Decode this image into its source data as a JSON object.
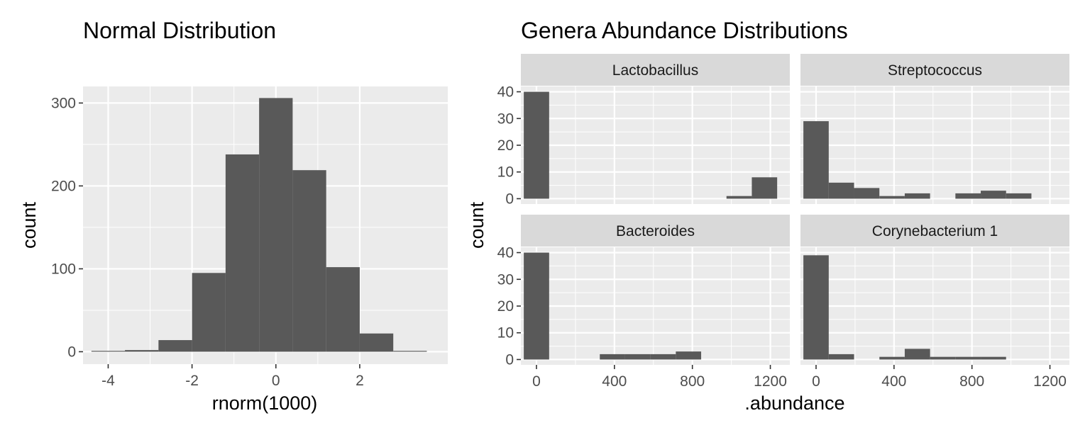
{
  "chart_data": [
    {
      "type": "bar",
      "title": "Normal Distribution",
      "xlabel": "rnorm(1000)",
      "ylabel": "count",
      "xlim": [
        -4.6,
        4.1
      ],
      "ylim": [
        -15,
        320
      ],
      "xticks": [
        -4,
        -2,
        0,
        2
      ],
      "xtick_labels": [
        "-4",
        "-2",
        "0",
        "2"
      ],
      "yticks": [
        0,
        100,
        200,
        300
      ],
      "ytick_labels": [
        "0",
        "100",
        "200",
        "300"
      ],
      "bin_width": 0.8,
      "bins": [
        {
          "x0": -4.4,
          "x1": -3.6,
          "count": 1
        },
        {
          "x0": -3.6,
          "x1": -2.8,
          "count": 2
        },
        {
          "x0": -2.8,
          "x1": -2.0,
          "count": 14
        },
        {
          "x0": -2.0,
          "x1": -1.2,
          "count": 95
        },
        {
          "x0": -1.2,
          "x1": -0.4,
          "count": 238
        },
        {
          "x0": -0.4,
          "x1": 0.4,
          "count": 306
        },
        {
          "x0": 0.4,
          "x1": 1.2,
          "count": 219
        },
        {
          "x0": 1.2,
          "x1": 2.0,
          "count": 102
        },
        {
          "x0": 2.0,
          "x1": 2.8,
          "count": 22
        },
        {
          "x0": 2.8,
          "x1": 3.6,
          "count": 1
        }
      ],
      "grid": true
    },
    {
      "type": "bar",
      "title": "Genera Abundance Distributions",
      "xlabel": ".abundance",
      "ylabel": "count",
      "xlim": [
        -80,
        1300
      ],
      "ylim": [
        -2,
        42
      ],
      "xticks": [
        0,
        400,
        800,
        1200
      ],
      "xtick_labels": [
        "0",
        "400",
        "800",
        "1200"
      ],
      "yticks": [
        0,
        10,
        20,
        30,
        40
      ],
      "ytick_labels": [
        "0",
        "10",
        "20",
        "30",
        "40"
      ],
      "bin_width": 130,
      "grid": true,
      "facets": [
        {
          "name": "Lactobacillus",
          "bins": [
            {
              "x0": -65,
              "x1": 65,
              "count": 40
            },
            {
              "x0": 975,
              "x1": 1105,
              "count": 1
            },
            {
              "x0": 1105,
              "x1": 1235,
              "count": 8
            }
          ]
        },
        {
          "name": "Streptococcus",
          "bins": [
            {
              "x0": -65,
              "x1": 65,
              "count": 29
            },
            {
              "x0": 65,
              "x1": 195,
              "count": 6
            },
            {
              "x0": 195,
              "x1": 325,
              "count": 4
            },
            {
              "x0": 325,
              "x1": 455,
              "count": 1
            },
            {
              "x0": 455,
              "x1": 585,
              "count": 2
            },
            {
              "x0": 715,
              "x1": 845,
              "count": 2
            },
            {
              "x0": 845,
              "x1": 975,
              "count": 3
            },
            {
              "x0": 975,
              "x1": 1105,
              "count": 2
            }
          ]
        },
        {
          "name": "Bacteroides",
          "bins": [
            {
              "x0": -65,
              "x1": 65,
              "count": 40
            },
            {
              "x0": 325,
              "x1": 455,
              "count": 2
            },
            {
              "x0": 455,
              "x1": 585,
              "count": 2
            },
            {
              "x0": 585,
              "x1": 715,
              "count": 2
            },
            {
              "x0": 715,
              "x1": 845,
              "count": 3
            }
          ]
        },
        {
          "name": "Corynebacterium 1",
          "bins": [
            {
              "x0": -65,
              "x1": 65,
              "count": 39
            },
            {
              "x0": 65,
              "x1": 195,
              "count": 2
            },
            {
              "x0": 325,
              "x1": 455,
              "count": 1
            },
            {
              "x0": 455,
              "x1": 585,
              "count": 4
            },
            {
              "x0": 585,
              "x1": 715,
              "count": 1
            },
            {
              "x0": 715,
              "x1": 845,
              "count": 1
            },
            {
              "x0": 845,
              "x1": 975,
              "count": 1
            }
          ]
        }
      ]
    }
  ],
  "colors": {
    "panel_background": "#ebebeb",
    "grid_major": "#ffffff",
    "bar_fill": "#595959",
    "strip_background": "#d9d9d9",
    "tick_label": "#4d4d4d",
    "tick_mark": "#333333"
  }
}
